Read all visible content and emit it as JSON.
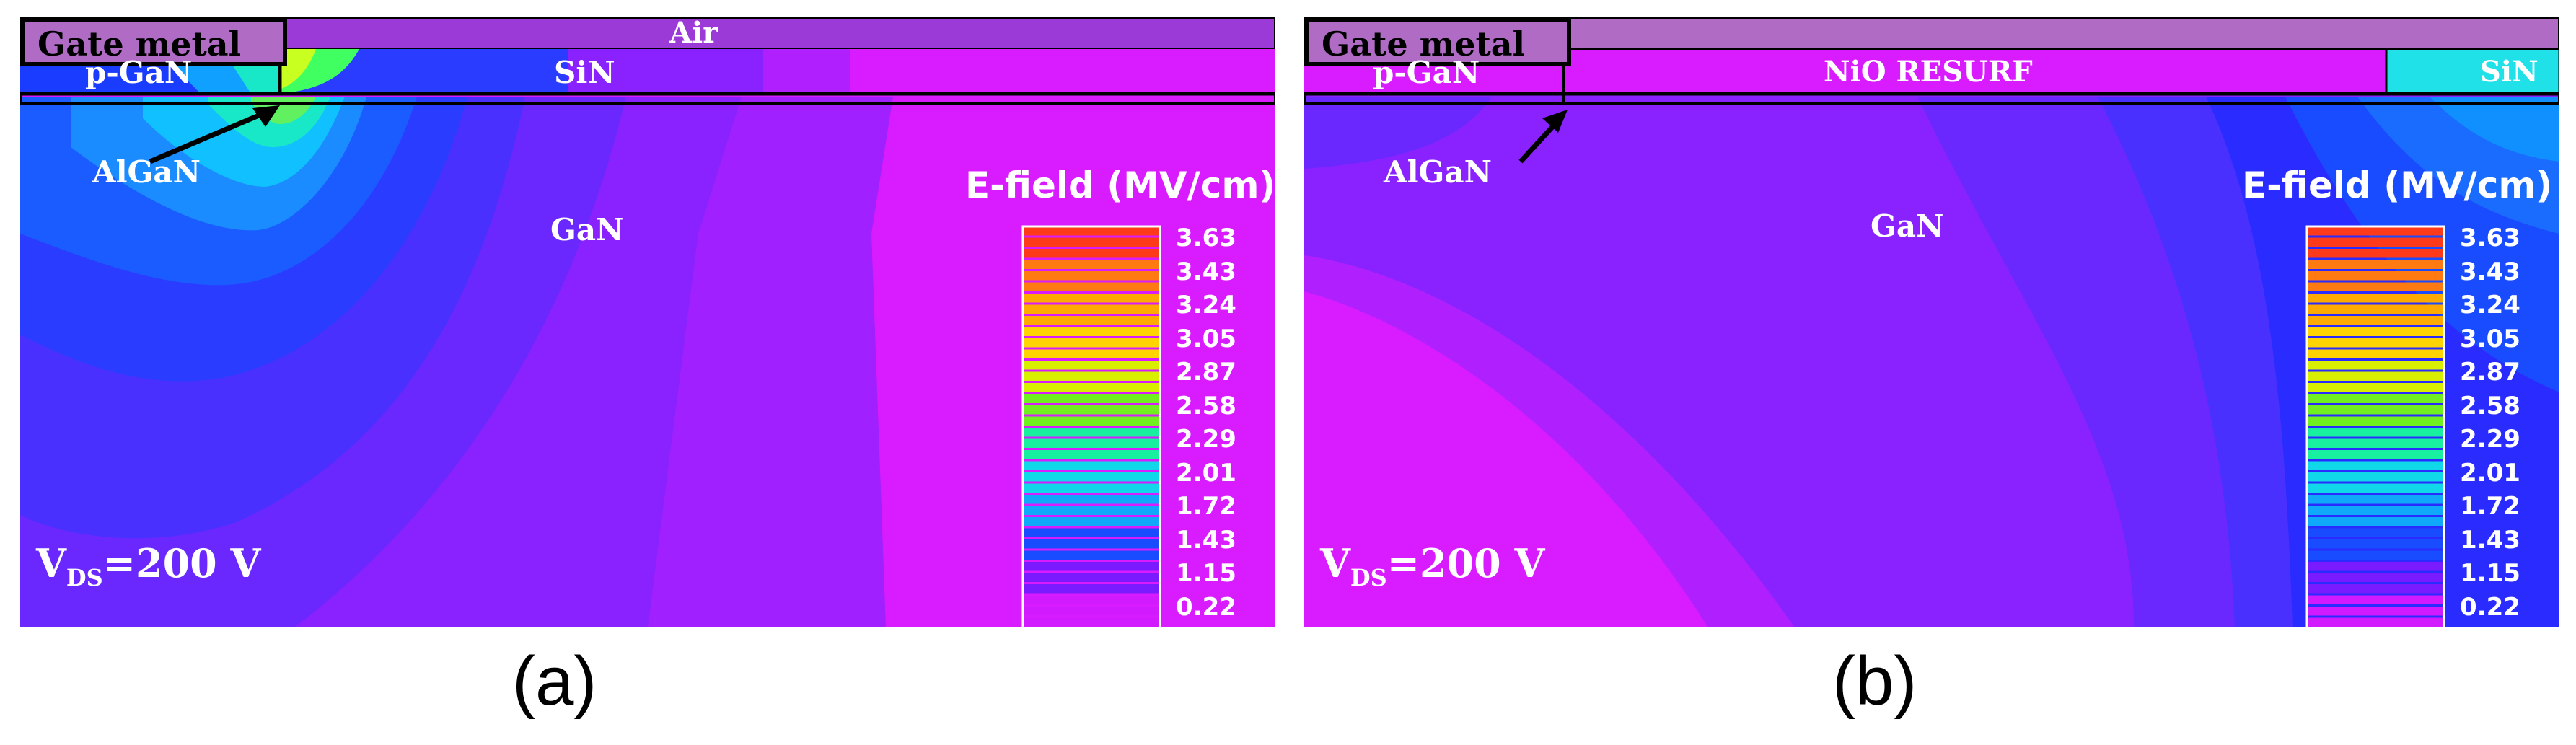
{
  "panels": [
    {
      "id": "a",
      "caption": "(a)",
      "labels": {
        "gate_metal": "Gate metal",
        "p_gan": "p-GaN",
        "top_region": "Air",
        "passivation": "SiN",
        "algan": "AlGaN",
        "bulk": "GaN",
        "vds_prefix": "V",
        "vds_sub": "DS",
        "vds_value": "=200 V"
      }
    },
    {
      "id": "b",
      "caption": "(b)",
      "labels": {
        "gate_metal": "Gate metal",
        "p_gan": "p-GaN",
        "resurf": "NiO RESURF",
        "passivation": "SiN",
        "algan": "AlGaN",
        "bulk": "GaN",
        "vds_prefix": "V",
        "vds_sub": "DS",
        "vds_value": "=200 V"
      }
    }
  ],
  "legend": {
    "title": "E-field (MV/cm)",
    "ticks": [
      "3.63",
      "3.43",
      "3.24",
      "3.05",
      "2.87",
      "2.58",
      "2.29",
      "2.01",
      "1.72",
      "1.43",
      "1.15",
      "0.22"
    ],
    "colors": [
      "#ff3a1a",
      "#ff7a10",
      "#ffaa00",
      "#ffd400",
      "#d8f000",
      "#70f020",
      "#18f0a0",
      "#10d8e8",
      "#10a8f8",
      "#1a4cff",
      "#7a1aff",
      "#d21aff"
    ]
  },
  "colors": {
    "gate_metal": "#b06cc4",
    "air": "#9b3ad6",
    "magenta": "#d91cff",
    "violet": "#8a22ff",
    "blue_violet": "#5a2aff",
    "blue": "#2020ff",
    "deep_blue": "#1a3cff",
    "cyan": "#10c8ff",
    "green": "#40ff40",
    "sin_cyan": "#20e0e8"
  }
}
